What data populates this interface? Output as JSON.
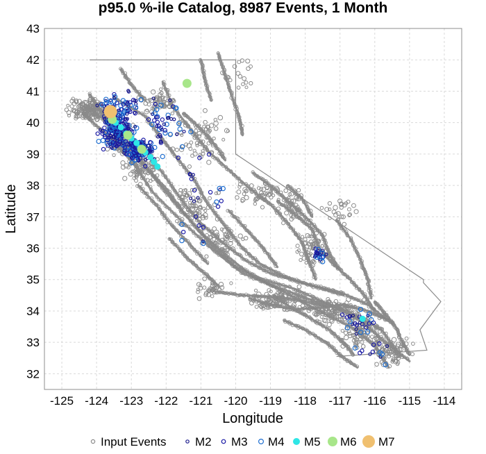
{
  "chart_data": {
    "type": "scatter",
    "title": "p95.0 %-ile Catalog, 8987 Events, 1 Month",
    "xlabel": "Longitude",
    "ylabel": "Latitude",
    "xlim": [
      -125.5,
      -113.5
    ],
    "ylim": [
      31.5,
      43
    ],
    "x_ticks": [
      -125,
      -124,
      -123,
      -122,
      -121,
      -120,
      -119,
      -118,
      -117,
      -116,
      -115,
      -114
    ],
    "y_ticks": [
      32,
      33,
      34,
      35,
      36,
      37,
      38,
      39,
      40,
      41,
      42,
      43
    ],
    "grid": true,
    "legend_position": "bottom",
    "colors": {
      "input": "#8a8a8a",
      "faults": "#808080",
      "border": "#8a8a8a",
      "m2": "#1a1a8c",
      "m3": "#1a1aa6",
      "m4": "#1f6fd1",
      "m5": "#2ee6e6",
      "m6": "#a8e68a",
      "m7": "#f0c070"
    },
    "legend": [
      {
        "key": "input",
        "label": "Input Events",
        "style": "hollow"
      },
      {
        "key": "m2",
        "label": "M2",
        "style": "hollow"
      },
      {
        "key": "m3",
        "label": "M3",
        "style": "hollow"
      },
      {
        "key": "m4",
        "label": "M4",
        "style": "hollow"
      },
      {
        "key": "m5",
        "label": "M5",
        "style": "filled"
      },
      {
        "key": "m6",
        "label": "M6",
        "style": "filled"
      },
      {
        "key": "m7",
        "label": "M7",
        "style": "filled"
      }
    ],
    "border": [
      [
        -124.2,
        42.0
      ],
      [
        -120.0,
        42.0
      ],
      [
        -120.0,
        39.0
      ],
      [
        -114.6,
        35.0
      ],
      [
        -114.6,
        34.9
      ],
      [
        -114.1,
        34.3
      ],
      [
        -114.7,
        33.4
      ],
      [
        -114.5,
        32.75
      ],
      [
        -117.1,
        32.55
      ]
    ],
    "faults": [
      [
        [
          -124.4,
          40.3
        ],
        [
          -123.7,
          39.6
        ],
        [
          -123.0,
          38.8
        ],
        [
          -122.4,
          37.8
        ],
        [
          -121.5,
          36.8
        ],
        [
          -120.6,
          35.9
        ],
        [
          -119.8,
          35.2
        ],
        [
          -118.9,
          34.8
        ],
        [
          -117.7,
          34.3
        ],
        [
          -116.8,
          34.0
        ],
        [
          -115.8,
          33.4
        ],
        [
          -115.3,
          32.6
        ]
      ],
      [
        [
          -124.0,
          40.6
        ],
        [
          -123.2,
          39.3
        ],
        [
          -122.6,
          38.6
        ],
        [
          -122.0,
          37.9
        ],
        [
          -121.4,
          37.0
        ],
        [
          -120.7,
          36.1
        ],
        [
          -120.0,
          35.4
        ],
        [
          -119.2,
          35.0
        ],
        [
          -118.3,
          34.7
        ],
        [
          -117.3,
          34.2
        ],
        [
          -116.4,
          33.7
        ],
        [
          -115.7,
          33.0
        ],
        [
          -115.0,
          32.4
        ]
      ],
      [
        [
          -123.8,
          40.1
        ],
        [
          -122.9,
          39.0
        ],
        [
          -122.3,
          38.2
        ],
        [
          -121.8,
          37.5
        ],
        [
          -121.0,
          36.5
        ],
        [
          -120.2,
          35.7
        ],
        [
          -119.5,
          35.1
        ],
        [
          -118.6,
          34.6
        ],
        [
          -117.6,
          34.0
        ],
        [
          -116.7,
          33.5
        ],
        [
          -116.0,
          32.9
        ],
        [
          -115.6,
          32.2
        ]
      ],
      [
        [
          -124.3,
          40.5
        ],
        [
          -123.4,
          39.8
        ],
        [
          -122.7,
          39.2
        ],
        [
          -122.1,
          38.4
        ],
        [
          -121.6,
          37.6
        ],
        [
          -121.1,
          36.9
        ],
        [
          -120.4,
          36.2
        ],
        [
          -119.7,
          35.6
        ],
        [
          -119.0,
          35.2
        ],
        [
          -118.1,
          34.9
        ],
        [
          -117.0,
          34.6
        ],
        [
          -116.2,
          34.2
        ],
        [
          -115.5,
          33.6
        ]
      ],
      [
        [
          -123.5,
          40.8
        ],
        [
          -122.6,
          40.2
        ],
        [
          -122.2,
          39.6
        ],
        [
          -121.7,
          38.9
        ],
        [
          -121.2,
          38.2
        ],
        [
          -120.8,
          37.4
        ],
        [
          -120.3,
          36.7
        ],
        [
          -119.8,
          36.0
        ],
        [
          -119.3,
          35.5
        ],
        [
          -118.6,
          35.1
        ],
        [
          -117.8,
          34.8
        ],
        [
          -116.9,
          34.5
        ]
      ],
      [
        [
          -122.1,
          41.3
        ],
        [
          -121.8,
          40.5
        ],
        [
          -121.3,
          39.8
        ],
        [
          -120.8,
          39.1
        ],
        [
          -120.2,
          38.5
        ],
        [
          -119.6,
          37.9
        ],
        [
          -119.0,
          37.4
        ],
        [
          -118.5,
          36.8
        ],
        [
          -118.1,
          36.2
        ],
        [
          -117.9,
          35.6
        ],
        [
          -117.7,
          35.0
        ]
      ],
      [
        [
          -120.5,
          42.2
        ],
        [
          -120.3,
          41.5
        ],
        [
          -120.1,
          40.8
        ],
        [
          -119.9,
          40.2
        ],
        [
          -119.8,
          39.6
        ]
      ],
      [
        [
          -121.0,
          42.0
        ],
        [
          -120.9,
          41.4
        ],
        [
          -120.7,
          40.7
        ]
      ],
      [
        [
          -119.5,
          38.4
        ],
        [
          -118.9,
          37.9
        ],
        [
          -118.4,
          37.4
        ],
        [
          -117.9,
          36.9
        ],
        [
          -117.5,
          36.4
        ],
        [
          -117.3,
          35.8
        ],
        [
          -117.0,
          35.3
        ]
      ],
      [
        [
          -118.8,
          37.5
        ],
        [
          -118.2,
          37.0
        ],
        [
          -117.8,
          36.6
        ],
        [
          -117.6,
          36.0
        ],
        [
          -117.2,
          35.5
        ],
        [
          -116.7,
          35.0
        ],
        [
          -116.3,
          34.5
        ],
        [
          -116.0,
          34.0
        ]
      ],
      [
        [
          -118.9,
          34.5
        ],
        [
          -118.4,
          34.1
        ],
        [
          -117.9,
          33.8
        ],
        [
          -117.3,
          33.4
        ],
        [
          -116.9,
          33.0
        ],
        [
          -116.6,
          32.6
        ]
      ],
      [
        [
          -119.6,
          34.4
        ],
        [
          -119.0,
          34.2
        ],
        [
          -118.3,
          34.05
        ],
        [
          -117.6,
          34.1
        ],
        [
          -116.9,
          34.2
        ],
        [
          -116.2,
          34.0
        ],
        [
          -115.6,
          33.7
        ]
      ],
      [
        [
          -120.5,
          34.6
        ],
        [
          -119.8,
          34.5
        ],
        [
          -119.0,
          34.45
        ],
        [
          -118.2,
          34.35
        ],
        [
          -117.4,
          34.15
        ]
      ],
      [
        [
          -118.6,
          33.7
        ],
        [
          -118.0,
          33.4
        ],
        [
          -117.4,
          33.0
        ],
        [
          -117.0,
          32.6
        ],
        [
          -116.5,
          32.2
        ]
      ],
      [
        [
          -121.9,
          36.3
        ],
        [
          -121.4,
          35.7
        ],
        [
          -120.9,
          35.2
        ],
        [
          -120.5,
          34.8
        ]
      ],
      [
        [
          -122.8,
          38.0
        ],
        [
          -122.3,
          37.4
        ],
        [
          -121.9,
          36.8
        ],
        [
          -121.3,
          36.1
        ],
        [
          -120.8,
          35.5
        ]
      ],
      [
        [
          -123.3,
          41.7
        ],
        [
          -123.0,
          41.2
        ],
        [
          -122.6,
          40.7
        ]
      ],
      [
        [
          -124.2,
          40.9
        ],
        [
          -123.9,
          40.4
        ],
        [
          -123.6,
          40.0
        ]
      ],
      [
        [
          -117.1,
          36.9
        ],
        [
          -116.7,
          36.3
        ],
        [
          -116.4,
          35.6
        ],
        [
          -116.2,
          35.0
        ],
        [
          -116.1,
          34.4
        ]
      ],
      [
        [
          -116.0,
          34.3
        ],
        [
          -115.7,
          33.9
        ],
        [
          -115.4,
          33.5
        ],
        [
          -115.2,
          33.0
        ],
        [
          -115.0,
          32.6
        ]
      ],
      [
        [
          -120.2,
          37.2
        ],
        [
          -119.7,
          36.6
        ],
        [
          -119.2,
          36.0
        ],
        [
          -118.8,
          35.4
        ]
      ],
      [
        [
          -118.5,
          38.0
        ],
        [
          -118.1,
          37.6
        ],
        [
          -117.8,
          37.0
        ]
      ],
      [
        [
          -121.5,
          40.3
        ],
        [
          -121.0,
          39.8
        ],
        [
          -120.6,
          39.3
        ],
        [
          -120.3,
          38.8
        ]
      ]
    ],
    "input_clusters": [
      {
        "x": -124.2,
        "y": 40.4,
        "sx": 0.55,
        "sy": 0.3,
        "n": 140
      },
      {
        "x": -123.3,
        "y": 39.5,
        "sx": 0.35,
        "sy": 0.45,
        "n": 110
      },
      {
        "x": -122.7,
        "y": 38.6,
        "sx": 0.45,
        "sy": 0.5,
        "n": 90
      },
      {
        "x": -122.2,
        "y": 40.6,
        "sx": 0.5,
        "sy": 0.35,
        "n": 60
      },
      {
        "x": -121.0,
        "y": 39.5,
        "sx": 0.8,
        "sy": 0.8,
        "n": 70
      },
      {
        "x": -121.2,
        "y": 37.3,
        "sx": 0.6,
        "sy": 0.6,
        "n": 70
      },
      {
        "x": -120.4,
        "y": 36.2,
        "sx": 0.6,
        "sy": 0.5,
        "n": 60
      },
      {
        "x": -119.3,
        "y": 37.8,
        "sx": 0.6,
        "sy": 0.4,
        "n": 55
      },
      {
        "x": -118.4,
        "y": 37.3,
        "sx": 0.4,
        "sy": 0.5,
        "n": 45
      },
      {
        "x": -117.8,
        "y": 36.0,
        "sx": 0.4,
        "sy": 0.6,
        "n": 55
      },
      {
        "x": -118.8,
        "y": 34.4,
        "sx": 0.8,
        "sy": 0.35,
        "n": 95
      },
      {
        "x": -117.2,
        "y": 34.0,
        "sx": 0.7,
        "sy": 0.4,
        "n": 110
      },
      {
        "x": -116.3,
        "y": 33.3,
        "sx": 0.55,
        "sy": 0.5,
        "n": 100
      },
      {
        "x": -115.5,
        "y": 32.7,
        "sx": 0.45,
        "sy": 0.4,
        "n": 80
      },
      {
        "x": -120.7,
        "y": 34.7,
        "sx": 0.5,
        "sy": 0.3,
        "n": 35
      },
      {
        "x": -117.0,
        "y": 37.2,
        "sx": 0.6,
        "sy": 0.5,
        "n": 25
      },
      {
        "x": -119.8,
        "y": 41.5,
        "sx": 0.5,
        "sy": 0.5,
        "n": 18
      }
    ],
    "m2_m4_clusters": [
      {
        "x": -123.4,
        "y": 39.8,
        "sx": 0.45,
        "sy": 0.55,
        "n": 230
      },
      {
        "x": -122.8,
        "y": 39.1,
        "sx": 0.4,
        "sy": 0.35,
        "n": 150
      },
      {
        "x": -123.3,
        "y": 40.6,
        "sx": 0.5,
        "sy": 0.35,
        "n": 50
      },
      {
        "x": -122.0,
        "y": 39.8,
        "sx": 0.8,
        "sy": 0.9,
        "n": 50
      },
      {
        "x": -121.0,
        "y": 37.5,
        "sx": 0.9,
        "sy": 1.3,
        "n": 25
      },
      {
        "x": -117.6,
        "y": 35.8,
        "sx": 0.15,
        "sy": 0.2,
        "n": 25
      },
      {
        "x": -116.5,
        "y": 33.7,
        "sx": 0.5,
        "sy": 0.4,
        "n": 25
      },
      {
        "x": -116.0,
        "y": 32.7,
        "sx": 0.5,
        "sy": 0.4,
        "n": 12
      }
    ],
    "m5_trail": [
      [
        -123.55,
        40.2
      ],
      [
        -123.45,
        40.0
      ],
      [
        -123.3,
        39.85
      ],
      [
        -123.15,
        39.65
      ],
      [
        -123.0,
        39.5
      ],
      [
        -122.85,
        39.35
      ],
      [
        -122.75,
        39.2
      ],
      [
        -122.6,
        39.05
      ],
      [
        -122.45,
        38.9
      ],
      [
        -122.35,
        38.75
      ],
      [
        -122.25,
        38.6
      ],
      [
        -116.35,
        33.75
      ]
    ],
    "m6_events": [
      [
        -123.55,
        40.1
      ],
      [
        -123.1,
        39.6
      ],
      [
        -122.7,
        39.15
      ],
      [
        -121.4,
        41.25
      ]
    ],
    "m7_events": [
      [
        -123.6,
        40.35
      ]
    ]
  }
}
